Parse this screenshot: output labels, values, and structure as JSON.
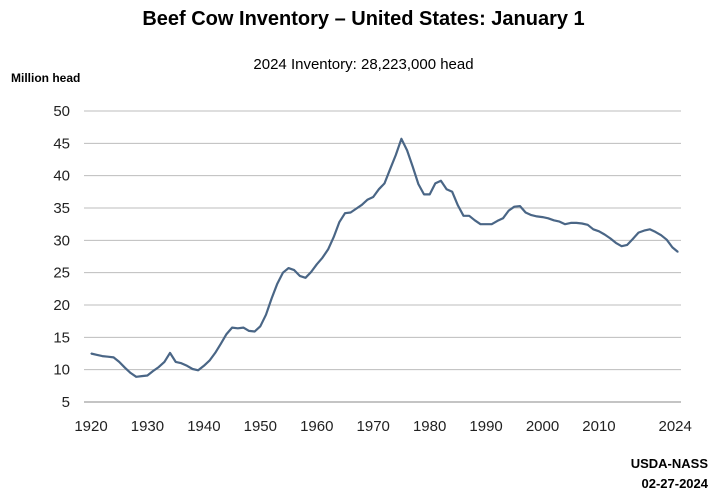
{
  "chart_data": {
    "type": "line",
    "title": "Beef Cow Inventory – United States: January 1",
    "subtitle": "2024 Inventory: 28,223,000 head",
    "ylabel": "Million head",
    "xlabel": "",
    "ylim": [
      5,
      50
    ],
    "xlim": [
      1920,
      2024
    ],
    "yticks": [
      5,
      10,
      15,
      20,
      25,
      30,
      35,
      40,
      45,
      50
    ],
    "xticks": [
      {
        "value": 1920,
        "label": "1920"
      },
      {
        "value": 1930,
        "label": "1930"
      },
      {
        "value": 1940,
        "label": "1940"
      },
      {
        "value": 1950,
        "label": "1950"
      },
      {
        "value": 1960,
        "label": "1960"
      },
      {
        "value": 1970,
        "label": "1970"
      },
      {
        "value": 1980,
        "label": "1980"
      },
      {
        "value": 1990,
        "label": "1990"
      },
      {
        "value": 2000,
        "label": "2000"
      },
      {
        "value": 2010,
        "label": "2010"
      },
      {
        "value": 2023.5,
        "label": "2024"
      }
    ],
    "grid": true,
    "line_color": "#4a6686",
    "x": [
      1920,
      1921,
      1922,
      1923,
      1924,
      1925,
      1926,
      1927,
      1928,
      1929,
      1930,
      1931,
      1932,
      1933,
      1934,
      1935,
      1936,
      1937,
      1938,
      1939,
      1940,
      1941,
      1942,
      1943,
      1944,
      1945,
      1946,
      1947,
      1948,
      1949,
      1950,
      1951,
      1952,
      1953,
      1954,
      1955,
      1956,
      1957,
      1958,
      1959,
      1960,
      1961,
      1962,
      1963,
      1964,
      1965,
      1966,
      1967,
      1968,
      1969,
      1970,
      1971,
      1972,
      1973,
      1974,
      1975,
      1976,
      1977,
      1978,
      1979,
      1980,
      1981,
      1982,
      1983,
      1984,
      1985,
      1986,
      1987,
      1988,
      1989,
      1990,
      1991,
      1992,
      1993,
      1994,
      1995,
      1996,
      1997,
      1998,
      1999,
      2000,
      2001,
      2002,
      2003,
      2004,
      2005,
      2006,
      2007,
      2008,
      2009,
      2010,
      2011,
      2012,
      2013,
      2014,
      2015,
      2016,
      2017,
      2018,
      2019,
      2020,
      2021,
      2022,
      2023,
      2024
    ],
    "values": [
      12.5,
      12.3,
      12.1,
      12.0,
      11.9,
      11.2,
      10.3,
      9.5,
      8.9,
      9.0,
      9.1,
      9.8,
      10.4,
      11.2,
      12.6,
      11.2,
      11.0,
      10.6,
      10.1,
      9.9,
      10.6,
      11.4,
      12.6,
      14.0,
      15.5,
      16.5,
      16.4,
      16.5,
      16.0,
      15.9,
      16.7,
      18.5,
      21.0,
      23.3,
      25.0,
      25.7,
      25.4,
      24.5,
      24.2,
      25.1,
      26.3,
      27.3,
      28.6,
      30.5,
      32.8,
      34.2,
      34.3,
      34.9,
      35.5,
      36.3,
      36.7,
      37.9,
      38.8,
      41.0,
      43.2,
      45.7,
      43.9,
      41.4,
      38.7,
      37.1,
      37.1,
      38.8,
      39.2,
      37.9,
      37.5,
      35.4,
      33.8,
      33.8,
      33.1,
      32.5,
      32.5,
      32.5,
      33.0,
      33.4,
      34.6,
      35.2,
      35.3,
      34.3,
      33.9,
      33.7,
      33.6,
      33.4,
      33.1,
      32.9,
      32.5,
      32.7,
      32.7,
      32.6,
      32.4,
      31.7,
      31.4,
      30.9,
      30.3,
      29.6,
      29.1,
      29.3,
      30.2,
      31.2,
      31.5,
      31.7,
      31.3,
      30.8,
      30.1,
      28.9,
      28.2
    ]
  },
  "source": {
    "agency": "USDA-NASS",
    "date": "02-27-2024"
  }
}
